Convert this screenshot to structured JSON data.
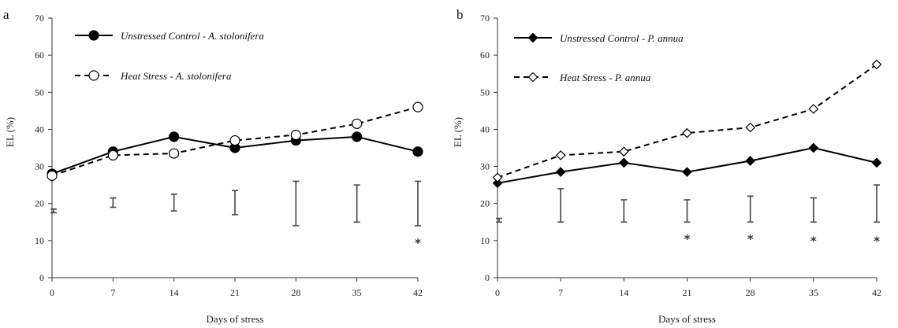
{
  "chart_data": [
    {
      "type": "line",
      "panel_label": "a",
      "xlabel": "Days of stress",
      "ylabel": "EL (%)",
      "x": [
        0,
        7,
        14,
        21,
        28,
        35,
        42
      ],
      "xticks": [
        "0",
        "7",
        "14",
        "21",
        "28",
        "35",
        "42"
      ],
      "yticks": [
        "0",
        "10",
        "20",
        "30",
        "40",
        "50",
        "60",
        "70"
      ],
      "ylim": [
        0,
        70
      ],
      "xlim": [
        0,
        42
      ],
      "legend_position": "top-left",
      "series": [
        {
          "name": "Unstressed Control - A. stolonifera",
          "marker": "filled-circle",
          "line": "solid",
          "values": [
            28,
            34,
            38,
            35,
            37,
            38,
            34
          ]
        },
        {
          "name": "Heat Stress - A. stolonifera",
          "marker": "open-circle",
          "line": "dashed",
          "values": [
            27.5,
            33,
            33.5,
            37,
            38.5,
            41.5,
            46
          ]
        }
      ],
      "lsd_bars": [
        {
          "x": 0,
          "low": 17.5,
          "high": 18.5
        },
        {
          "x": 7,
          "low": 19,
          "high": 21.5
        },
        {
          "x": 14,
          "low": 18,
          "high": 22.5
        },
        {
          "x": 21,
          "low": 17,
          "high": 23.5
        },
        {
          "x": 28,
          "low": 14,
          "high": 26
        },
        {
          "x": 35,
          "low": 15,
          "high": 25
        },
        {
          "x": 42,
          "low": 14,
          "high": 26
        }
      ],
      "significance": [
        {
          "x": 42,
          "y": 10,
          "symbol": "*"
        }
      ]
    },
    {
      "type": "line",
      "panel_label": "b",
      "xlabel": "Days of stress",
      "ylabel": "EL (%)",
      "x": [
        0,
        7,
        14,
        21,
        28,
        35,
        42
      ],
      "xticks": [
        "0",
        "7",
        "14",
        "21",
        "28",
        "35",
        "42"
      ],
      "yticks": [
        "0",
        "10",
        "20",
        "30",
        "40",
        "50",
        "60",
        "70"
      ],
      "ylim": [
        0,
        70
      ],
      "xlim": [
        0,
        42
      ],
      "legend_position": "top-left",
      "series": [
        {
          "name": "Unstressed Control - P. annua",
          "marker": "filled-diamond",
          "line": "solid",
          "values": [
            25.5,
            28.5,
            31,
            28.5,
            31.5,
            35,
            31
          ]
        },
        {
          "name": "Heat Stress - P. annua",
          "marker": "open-diamond",
          "line": "dashed",
          "values": [
            27,
            33,
            34,
            39,
            40.5,
            45.5,
            57.5
          ]
        }
      ],
      "lsd_bars": [
        {
          "x": 0,
          "low": 15,
          "high": 16
        },
        {
          "x": 7,
          "low": 15,
          "high": 24
        },
        {
          "x": 14,
          "low": 15,
          "high": 21
        },
        {
          "x": 21,
          "low": 15,
          "high": 21
        },
        {
          "x": 28,
          "low": 15,
          "high": 22
        },
        {
          "x": 35,
          "low": 15,
          "high": 21.5
        },
        {
          "x": 42,
          "low": 15,
          "high": 25
        }
      ],
      "significance": [
        {
          "x": 21,
          "y": 11,
          "symbol": "*"
        },
        {
          "x": 28,
          "y": 11,
          "symbol": "*"
        },
        {
          "x": 35,
          "y": 10.5,
          "symbol": "*"
        },
        {
          "x": 42,
          "y": 10.5,
          "symbol": "*"
        }
      ]
    }
  ]
}
